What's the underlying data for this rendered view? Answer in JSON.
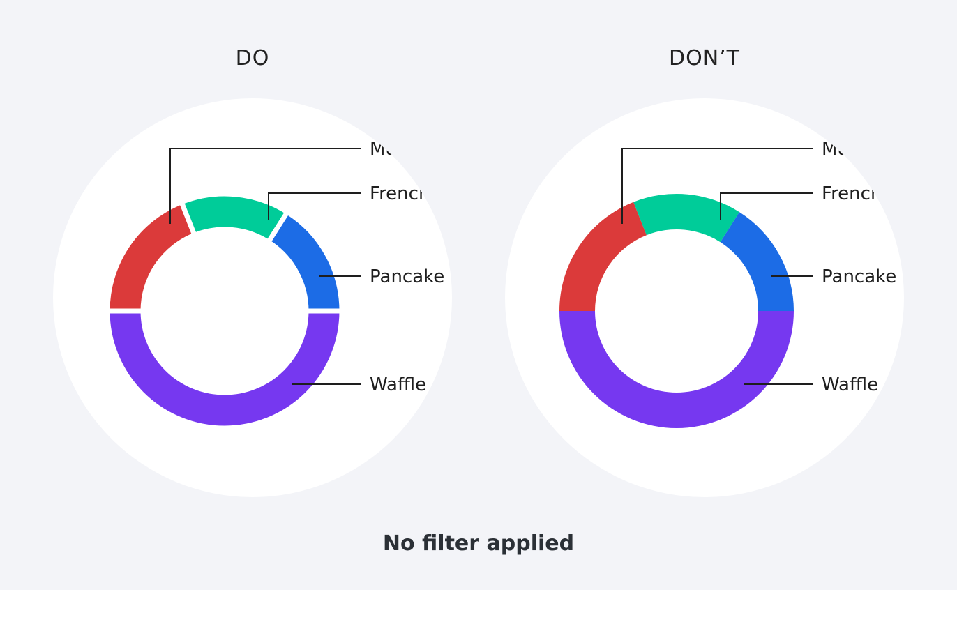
{
  "colors": {
    "page": "#ffffff",
    "panel": "#f3f4f8",
    "halo": "#ffffff",
    "waffle": "#7638f0",
    "muffin": "#db3a3a",
    "french_toast": "#00cc99",
    "pancake": "#1c6ce6",
    "leader": "#1e1e1e"
  },
  "caption": "No filter applied",
  "chart_data": [
    {
      "type": "pie",
      "variant": "donut",
      "title": "DO",
      "segment_gaps": true,
      "slices": [
        {
          "label": "Waffle",
          "value": 50,
          "color": "#7638f0"
        },
        {
          "label": "Muffin",
          "value": 19,
          "color": "#db3a3a"
        },
        {
          "label": "French",
          "value": 15,
          "color": "#00cc99"
        },
        {
          "label": "Pancake",
          "value": 16,
          "color": "#1c6ce6"
        }
      ],
      "callouts": [
        {
          "label": "Mu",
          "slice": "Muffin",
          "visible_chars": "Mu"
        },
        {
          "label": "French",
          "slice": "French"
        },
        {
          "label": "Pancake",
          "slice": "Pancake"
        },
        {
          "label": "Waffle",
          "slice": "Waffle"
        }
      ]
    },
    {
      "type": "pie",
      "variant": "donut",
      "title": "DON’T",
      "segment_gaps": false,
      "slices": [
        {
          "label": "Waffle",
          "value": 50,
          "color": "#7638f0"
        },
        {
          "label": "Muffin",
          "value": 19,
          "color": "#db3a3a"
        },
        {
          "label": "French",
          "value": 15,
          "color": "#00cc99"
        },
        {
          "label": "Pancake",
          "value": 16,
          "color": "#1c6ce6"
        }
      ],
      "callouts": [
        {
          "label": "Mu",
          "slice": "Muffin"
        },
        {
          "label": "French",
          "slice": "French"
        },
        {
          "label": "Pancake",
          "slice": "Pancake"
        },
        {
          "label": "Waffle",
          "slice": "Waffle"
        }
      ]
    }
  ]
}
